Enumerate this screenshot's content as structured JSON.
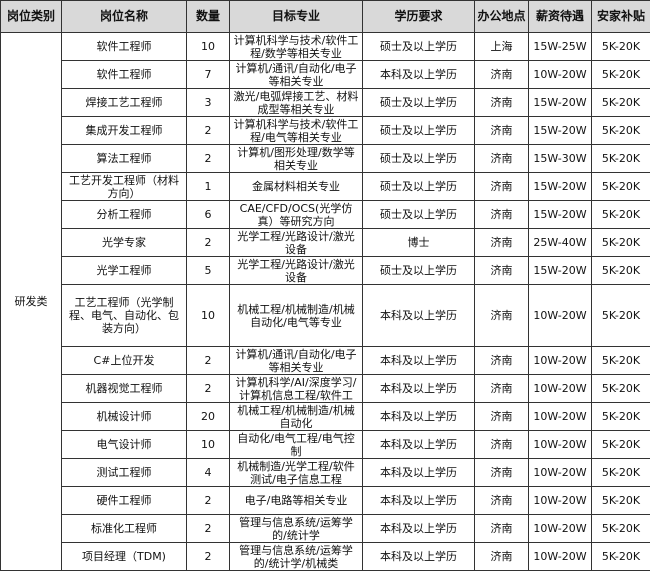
{
  "headers": [
    "岗位类别",
    "岗位名称",
    "数量",
    "目标专业",
    "学历要求",
    "办公地点",
    "薪资待遇",
    "安家补贴"
  ],
  "category": "研发类",
  "rows": [
    {
      "name": "软件工程师",
      "count": "10",
      "major": "计算机科学与技术/软件工程/数学等相关专业",
      "edu": "硕士及以上学历",
      "loc": "上海",
      "salary": "15W-25W",
      "bonus": "5K-20K"
    },
    {
      "name": "软件工程师",
      "count": "7",
      "major": "计算机/通讯/自动化/电子等相关专业",
      "edu": "本科及以上学历",
      "loc": "济南",
      "salary": "10W-20W",
      "bonus": "5K-20K"
    },
    {
      "name": "焊接工艺工程师",
      "count": "3",
      "major": "激光/电弧焊接工艺、材料成型等相关专业",
      "edu": "硕士及以上学历",
      "loc": "济南",
      "salary": "15W-20W",
      "bonus": "5K-20K"
    },
    {
      "name": "集成开发工程师",
      "count": "2",
      "major": "计算机科学与技术/软件工程/电气等相关专业",
      "edu": "硕士及以上学历",
      "loc": "济南",
      "salary": "15W-20W",
      "bonus": "5K-20K"
    },
    {
      "name": "算法工程师",
      "count": "2",
      "major": "计算机/图形处理/数学等相关专业",
      "edu": "硕士及以上学历",
      "loc": "济南",
      "salary": "15W-30W",
      "bonus": "5K-20K"
    },
    {
      "name": "工艺开发工程师（材料方向）",
      "count": "1",
      "major": "金属材料相关专业",
      "edu": "硕士及以上学历",
      "loc": "济南",
      "salary": "15W-20W",
      "bonus": "5K-20K"
    },
    {
      "name": "分析工程师",
      "count": "6",
      "major": "CAE/CFD/OCS(光学仿真）等研究方向",
      "edu": "硕士及以上学历",
      "loc": "济南",
      "salary": "15W-20W",
      "bonus": "5K-20K"
    },
    {
      "name": "光学专家",
      "count": "2",
      "major": "光学工程/光路设计/激光设备",
      "edu": "博士",
      "loc": "济南",
      "salary": "25W-40W",
      "bonus": "5K-20K"
    },
    {
      "name": "光学工程师",
      "count": "5",
      "major": "光学工程/光路设计/激光设备",
      "edu": "硕士及以上学历",
      "loc": "济南",
      "salary": "15W-20W",
      "bonus": "5K-20K"
    },
    {
      "name": "工艺工程师（光学制程、电气、自动化、包装方向）",
      "count": "10",
      "major": "机械工程/机械制造/机械自动化/电气等专业",
      "edu": "本科及以上学历",
      "loc": "济南",
      "salary": "10W-20W",
      "bonus": "5K-20K"
    },
    {
      "name": "C#上位开发",
      "count": "2",
      "major": "计算机/通讯/自动化/电子等相关专业",
      "edu": "本科及以上学历",
      "loc": "济南",
      "salary": "10W-20W",
      "bonus": "5K-20K"
    },
    {
      "name": "机器视觉工程师",
      "count": "2",
      "major": "计算机科学/AI/深度学习/计算机信息工程/软件工",
      "edu": "本科及以上学历",
      "loc": "济南",
      "salary": "10W-20W",
      "bonus": "5K-20K"
    },
    {
      "name": "机械设计师",
      "count": "20",
      "major": "机械工程/机械制造/机械自动化",
      "edu": "本科及以上学历",
      "loc": "济南",
      "salary": "10W-20W",
      "bonus": "5K-20K"
    },
    {
      "name": "电气设计师",
      "count": "10",
      "major": "自动化/电气工程/电气控制",
      "edu": "本科及以上学历",
      "loc": "济南",
      "salary": "10W-20W",
      "bonus": "5K-20K"
    },
    {
      "name": "测试工程师",
      "count": "4",
      "major": "机械制造/光学工程/软件测试/电子信息工程",
      "edu": "本科及以上学历",
      "loc": "济南",
      "salary": "10W-20W",
      "bonus": "5K-20K"
    },
    {
      "name": "硬件工程师",
      "count": "2",
      "major": "电子/电路等相关专业",
      "edu": "本科及以上学历",
      "loc": "济南",
      "salary": "10W-20W",
      "bonus": "5K-20K"
    },
    {
      "name": "标准化工程师",
      "count": "2",
      "major": "管理与信息系统/运筹学的/统计学",
      "edu": "本科及以上学历",
      "loc": "济南",
      "salary": "10W-20W",
      "bonus": "5K-20K"
    },
    {
      "name": "项目经理（TDM)",
      "count": "2",
      "major": "管理与信息系统/运筹学的/统计学/机械类",
      "edu": "本科及以上学历",
      "loc": "济南",
      "salary": "10W-20W",
      "bonus": "5K-20K"
    }
  ]
}
